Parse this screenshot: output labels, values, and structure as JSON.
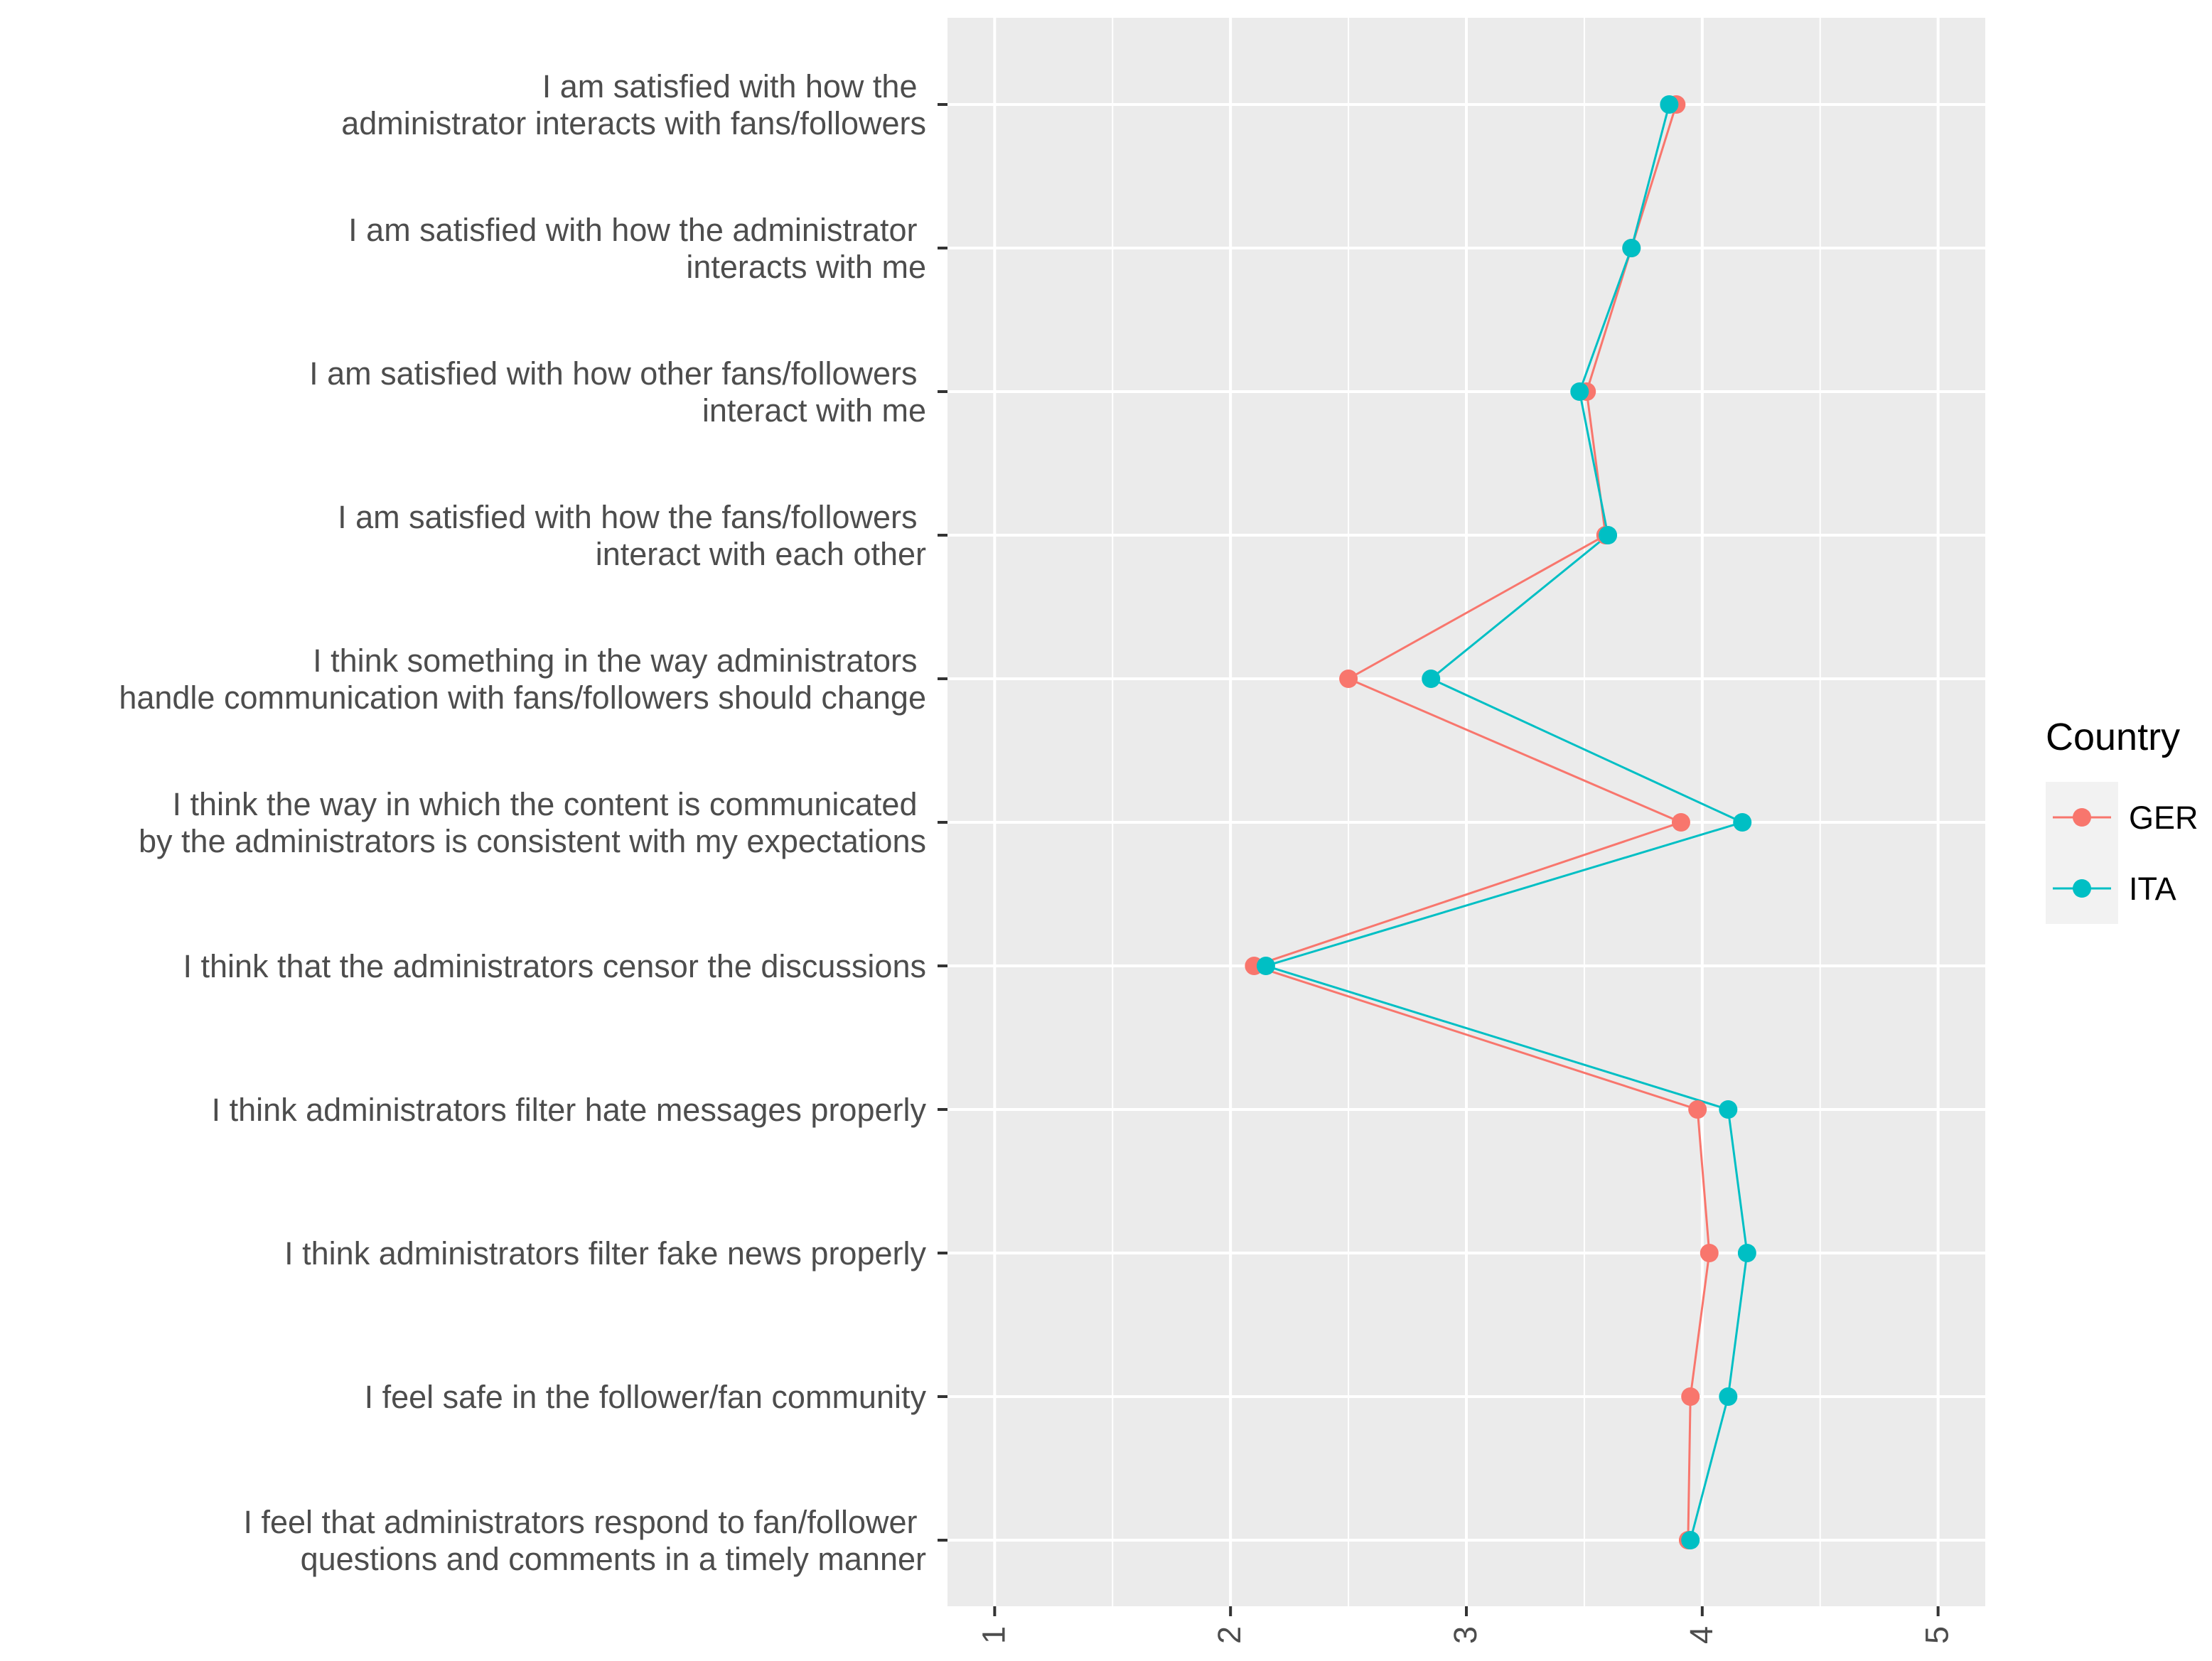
{
  "chart_data": {
    "type": "line",
    "orientation": "horizontal",
    "title": "",
    "xlabel": "",
    "ylabel": "",
    "xlim": [
      0.8,
      5.2
    ],
    "x_ticks": [
      1,
      2,
      3,
      4,
      5
    ],
    "x_tick_labels": [
      "1",
      "2",
      "3",
      "4",
      "5"
    ],
    "x_tick_rotation": "vertical",
    "grid": true,
    "categories": [
      "I am satisfied with how the \nadministrator interacts with fans/followers",
      "I am satisfied with how the administrator \ninteracts with me",
      "I am satisfied with how other fans/followers \ninteract with me",
      "I am satisfied with how the fans/followers \ninteract with each other",
      "I think something in the way administrators \nhandle communication with fans/followers should change",
      "I think the way in which the content is communicated \nby the administrators is consistent with my expectations",
      "I think that the administrators censor the discussions",
      "I think administrators filter hate messages properly",
      "I think administrators filter fake news properly",
      "I feel safe in the follower/fan community",
      "I feel that administrators respond to fan/follower \nquestions and comments in a timely manner"
    ],
    "series": [
      {
        "name": "GER",
        "color": "#F8766D",
        "values": [
          3.89,
          3.7,
          3.51,
          3.59,
          2.5,
          3.91,
          2.1,
          3.98,
          4.03,
          3.95,
          3.94
        ]
      },
      {
        "name": "ITA",
        "color": "#00BFC4",
        "values": [
          3.86,
          3.7,
          3.48,
          3.6,
          2.85,
          4.17,
          2.15,
          4.11,
          4.19,
          4.11,
          3.95
        ]
      }
    ],
    "legend": {
      "title": "Country",
      "position": "right",
      "entries": [
        "GER",
        "ITA"
      ]
    },
    "colors": {
      "panel_background": "#EBEBEB",
      "grid": "#FFFFFF",
      "axis_text": "#4D4D4D",
      "tick": "#333333"
    }
  }
}
